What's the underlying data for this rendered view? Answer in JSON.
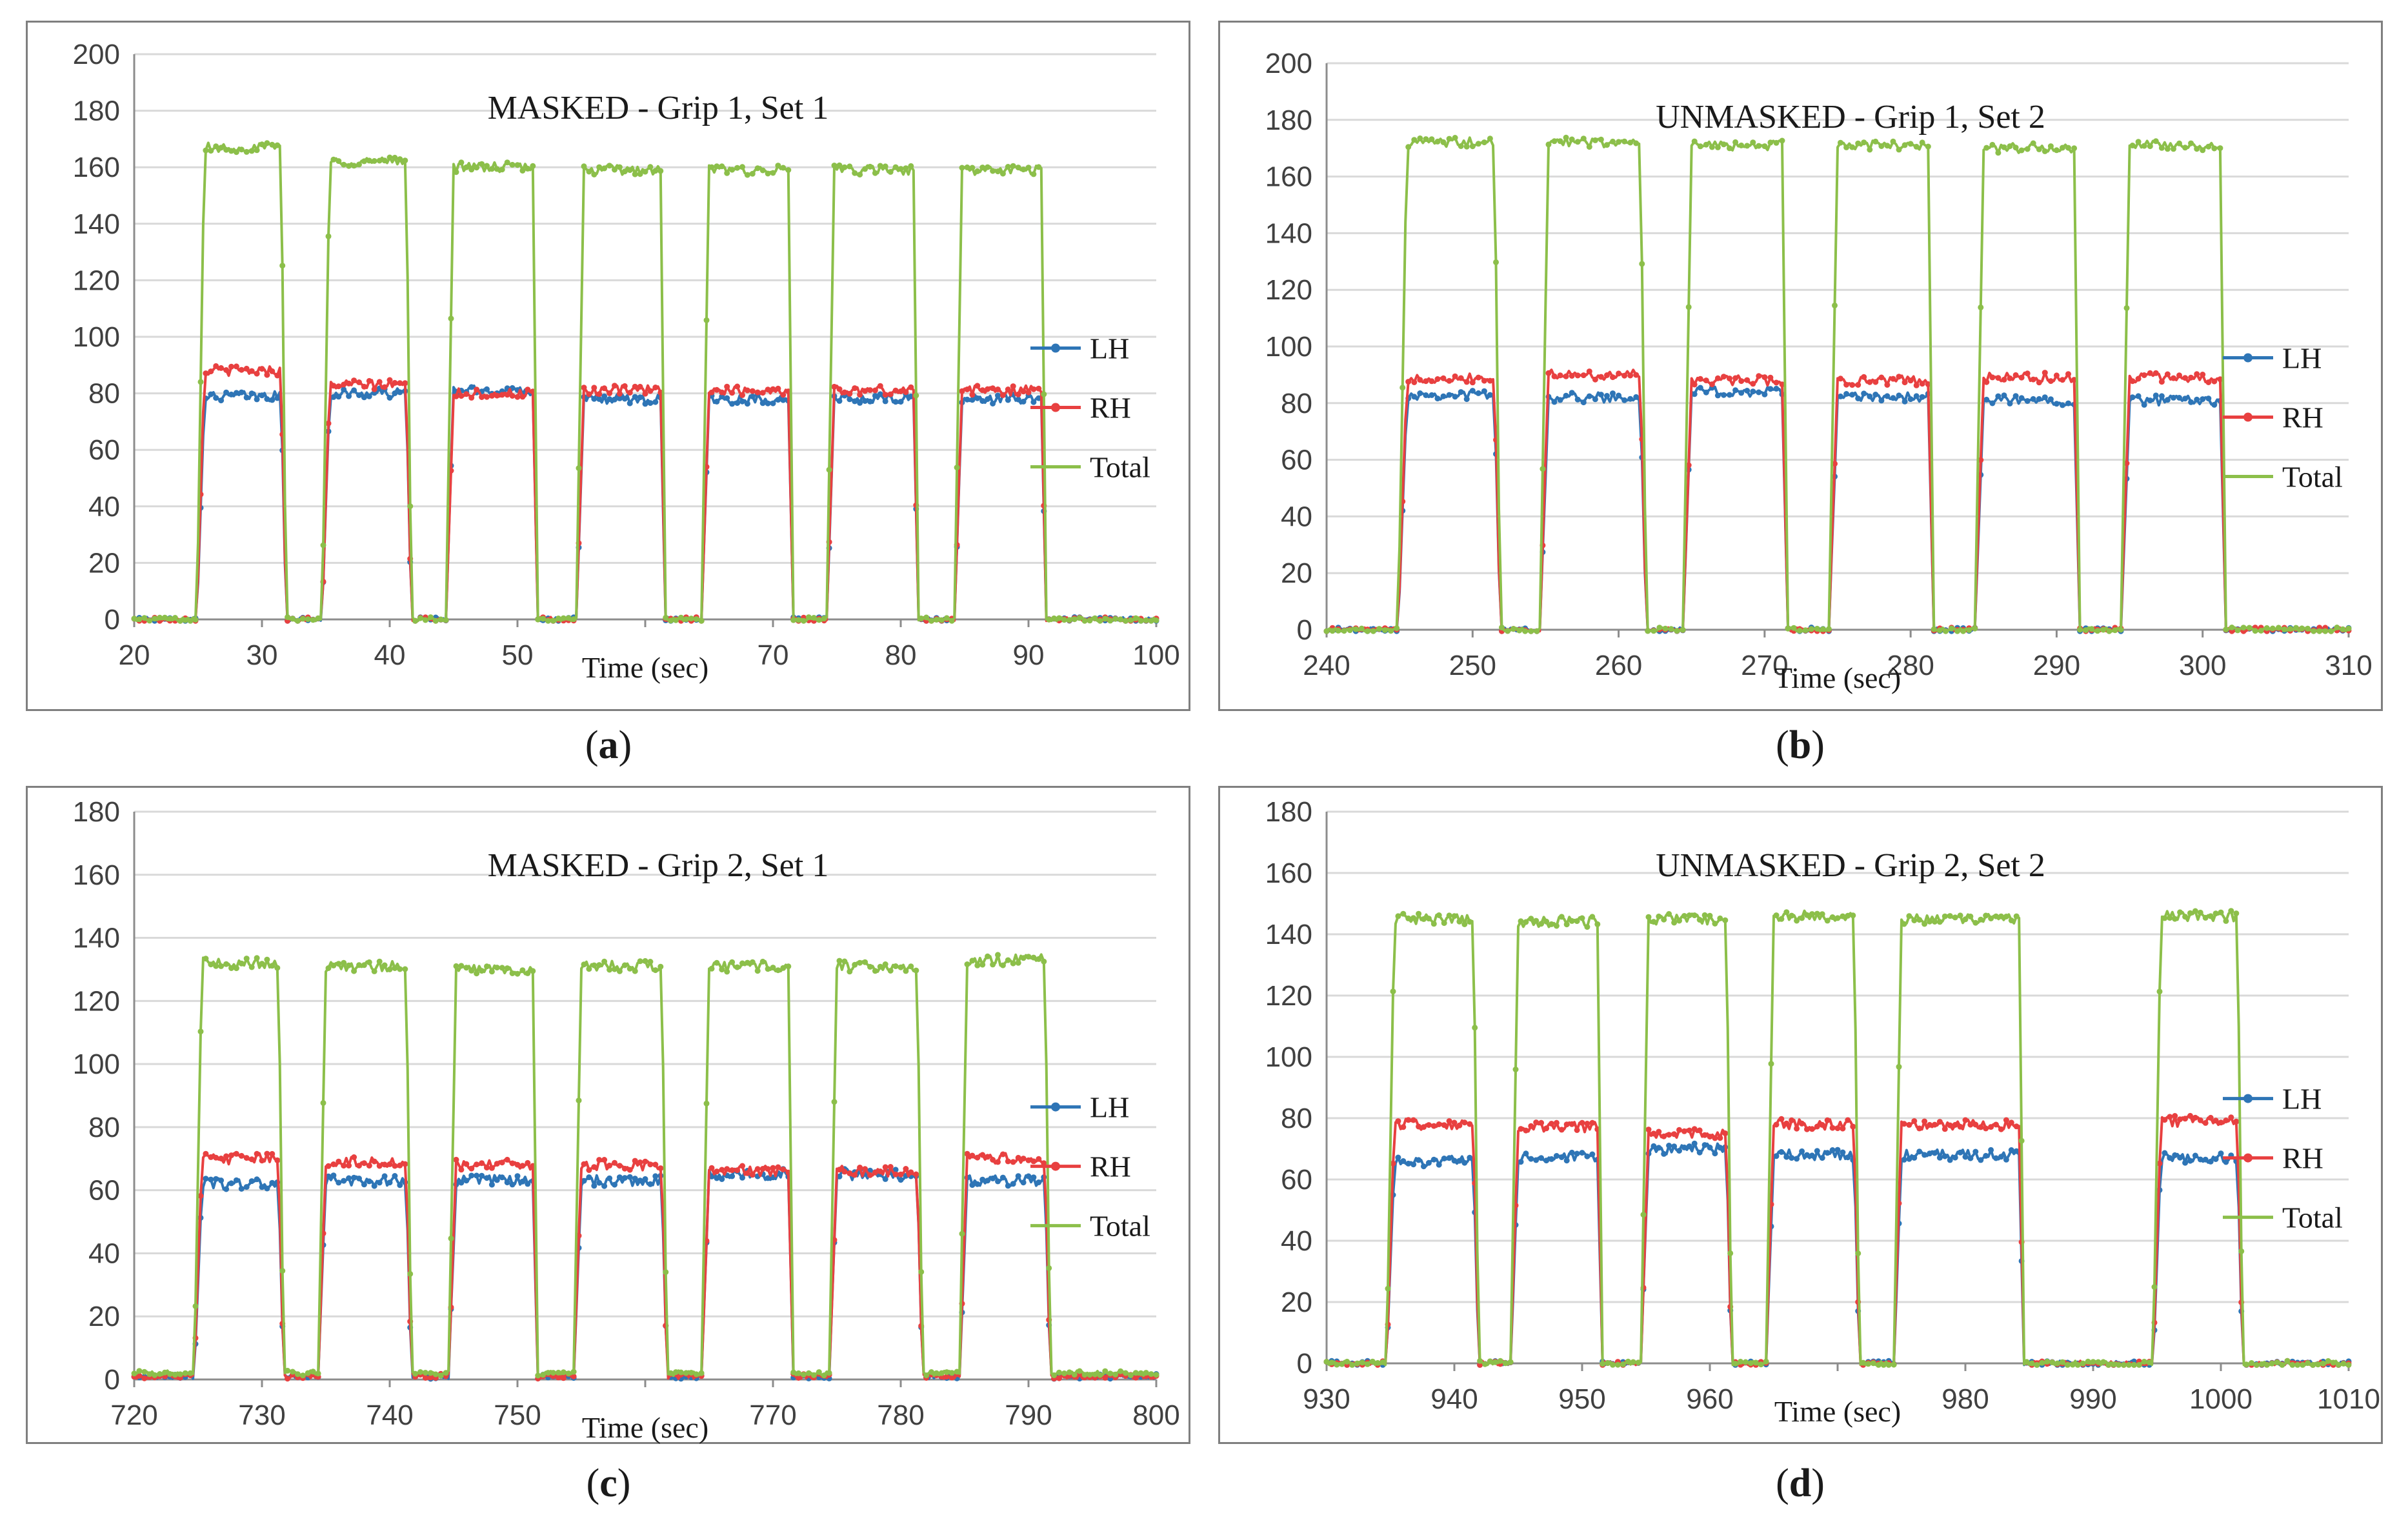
{
  "colors": {
    "lh": "#2e75b6",
    "rh": "#e84040",
    "total": "#8cbf4a",
    "frame": "#7f7f7f",
    "grid": "#d9d9d9"
  },
  "chart_data": [
    {
      "id": "a",
      "type": "line",
      "caption": "a",
      "title": "MASKED - Grip 1, Set 1",
      "xlabel": "Time (sec)",
      "ylabel": "",
      "xlim": [
        20,
        100
      ],
      "ylim": [
        0,
        200
      ],
      "xticks": [
        "20",
        "30",
        "40",
        "50",
        "60",
        "70",
        "80",
        "90",
        "100"
      ],
      "yticks": [
        "0",
        "20",
        "40",
        "60",
        "80",
        "100",
        "120",
        "140",
        "160",
        "180",
        "200"
      ],
      "legend": [
        "LH",
        "RH",
        "Total"
      ],
      "legend_position": "right",
      "series": [
        {
          "name": "LH",
          "baseline": 0,
          "pulses": [
            [
              25.5,
              31.5,
              79
            ],
            [
              35.3,
              41.3,
              80
            ],
            [
              45.0,
              51.2,
              81
            ],
            [
              55.2,
              61.2,
              78
            ],
            [
              65.0,
              71.2,
              78
            ],
            [
              74.8,
              81.0,
              78
            ],
            [
              84.8,
              91.0,
              78
            ]
          ]
        },
        {
          "name": "RH",
          "baseline": 0,
          "pulses": [
            [
              25.5,
              31.5,
              88
            ],
            [
              35.3,
              41.3,
              83
            ],
            [
              45.0,
              51.2,
              80
            ],
            [
              55.2,
              61.2,
              81
            ],
            [
              65.0,
              71.2,
              81
            ],
            [
              74.8,
              81.0,
              81
            ],
            [
              84.8,
              91.0,
              81
            ]
          ]
        },
        {
          "name": "Total",
          "baseline": 0,
          "pulses": [
            [
              25.5,
              31.5,
              167
            ],
            [
              35.3,
              41.3,
              162
            ],
            [
              45.0,
              51.2,
              160
            ],
            [
              55.2,
              61.2,
              159
            ],
            [
              65.0,
              71.2,
              159
            ],
            [
              74.8,
              81.0,
              159
            ],
            [
              84.8,
              91.0,
              159
            ]
          ]
        }
      ]
    },
    {
      "id": "b",
      "type": "line",
      "caption": "b",
      "title": "UNMASKED - Grip 1, Set 2",
      "xlabel": "Time (sec)",
      "ylabel": "",
      "xlim": [
        240,
        310
      ],
      "ylim": [
        0,
        200
      ],
      "xticks": [
        "240",
        "250",
        "260",
        "270",
        "280",
        "290",
        "300",
        "310"
      ],
      "yticks": [
        "0",
        "20",
        "40",
        "60",
        "80",
        "100",
        "120",
        "140",
        "160",
        "180",
        "200"
      ],
      "legend": [
        "LH",
        "RH",
        "Total"
      ],
      "legend_position": "right",
      "series": [
        {
          "name": "LH",
          "baseline": 0,
          "pulses": [
            [
              245.5,
              251.5,
              83
            ],
            [
              255.2,
              261.5,
              82
            ],
            [
              265.0,
              271.2,
              84
            ],
            [
              275.0,
              281.2,
              82
            ],
            [
              285.0,
              291.2,
              81
            ],
            [
              295.0,
              301.2,
              81
            ]
          ]
        },
        {
          "name": "RH",
          "baseline": 0,
          "pulses": [
            [
              245.5,
              251.5,
              89
            ],
            [
              255.2,
              261.5,
              90
            ],
            [
              265.0,
              271.2,
              88
            ],
            [
              275.0,
              281.2,
              88
            ],
            [
              285.0,
              291.2,
              89
            ],
            [
              295.0,
              301.2,
              89
            ]
          ]
        },
        {
          "name": "Total",
          "baseline": 0,
          "pulses": [
            [
              245.5,
              251.5,
              172
            ],
            [
              255.2,
              261.5,
              172
            ],
            [
              265.0,
              271.2,
              171
            ],
            [
              275.0,
              281.2,
              171
            ],
            [
              285.0,
              291.2,
              170
            ],
            [
              295.0,
              301.2,
              171
            ]
          ]
        }
      ]
    },
    {
      "id": "c",
      "type": "line",
      "caption": "c",
      "title": "MASKED - Grip 2, Set 1",
      "xlabel": "Time (sec)",
      "ylabel": "",
      "xlim": [
        720,
        800
      ],
      "ylim": [
        0,
        180
      ],
      "xticks": [
        "720",
        "730",
        "740",
        "750",
        "760",
        "770",
        "780",
        "790",
        "800"
      ],
      "yticks": [
        "0",
        "20",
        "40",
        "60",
        "80",
        "100",
        "120",
        "140",
        "160",
        "180"
      ],
      "legend": [
        "LH",
        "RH",
        "Total"
      ],
      "legend_position": "right",
      "series": [
        {
          "name": "LH",
          "baseline": 1,
          "pulses": [
            [
              725.3,
              731.3,
              62
            ],
            [
              735.0,
              741.3,
              63
            ],
            [
              745.2,
              751.2,
              63
            ],
            [
              755.0,
              761.3,
              63
            ],
            [
              765.0,
              771.2,
              65
            ],
            [
              775.0,
              781.3,
              65
            ],
            [
              785.2,
              791.3,
              63
            ]
          ]
        },
        {
          "name": "RH",
          "baseline": 1,
          "pulses": [
            [
              725.3,
              731.3,
              70
            ],
            [
              735.0,
              741.3,
              69
            ],
            [
              745.2,
              751.2,
              68
            ],
            [
              755.0,
              761.3,
              68
            ],
            [
              765.0,
              771.2,
              66
            ],
            [
              775.0,
              781.3,
              66
            ],
            [
              785.2,
              791.3,
              70
            ]
          ]
        },
        {
          "name": "Total",
          "baseline": 2,
          "pulses": [
            [
              725.3,
              731.3,
              132
            ],
            [
              735.0,
              741.3,
              131
            ],
            [
              745.2,
              751.2,
              130
            ],
            [
              755.0,
              761.3,
              131
            ],
            [
              765.0,
              771.2,
              131
            ],
            [
              775.0,
              781.3,
              131
            ],
            [
              785.2,
              791.3,
              133
            ]
          ]
        }
      ]
    },
    {
      "id": "d",
      "type": "line",
      "caption": "d",
      "title": "UNMASKED - Grip 2, Set 2",
      "xlabel": "Time (sec)",
      "ylabel": "",
      "xlim": [
        930,
        1010
      ],
      "ylim": [
        0,
        180
      ],
      "xticks": [
        "930",
        "940",
        "950",
        "960",
        "970",
        "980",
        "990",
        "1000",
        "1010"
      ],
      "yticks": [
        "0",
        "20",
        "40",
        "60",
        "80",
        "100",
        "120",
        "140",
        "160",
        "180"
      ],
      "legend": [
        "LH",
        "RH",
        "Total"
      ],
      "legend_position": "right",
      "series": [
        {
          "name": "LH",
          "baseline": 0,
          "pulses": [
            [
              935.3,
              941.5,
              66
            ],
            [
              945.0,
              951.2,
              67
            ],
            [
              955.2,
              961.3,
              70
            ],
            [
              965.0,
              971.3,
              68
            ],
            [
              975.0,
              984.2,
              68
            ],
            [
              995.3,
              1001.3,
              67
            ]
          ]
        },
        {
          "name": "RH",
          "baseline": 0,
          "pulses": [
            [
              935.3,
              941.5,
              78
            ],
            [
              945.0,
              951.2,
              77
            ],
            [
              955.2,
              961.3,
              75
            ],
            [
              965.0,
              971.3,
              78
            ],
            [
              975.0,
              984.2,
              78
            ],
            [
              995.3,
              1001.3,
              79
            ]
          ]
        },
        {
          "name": "Total",
          "baseline": 0,
          "pulses": [
            [
              935.3,
              941.5,
              145
            ],
            [
              945.0,
              951.2,
              144
            ],
            [
              955.2,
              961.3,
              145
            ],
            [
              965.0,
              971.3,
              146
            ],
            [
              975.0,
              984.2,
              145
            ],
            [
              995.3,
              1001.3,
              146
            ]
          ]
        }
      ]
    }
  ]
}
